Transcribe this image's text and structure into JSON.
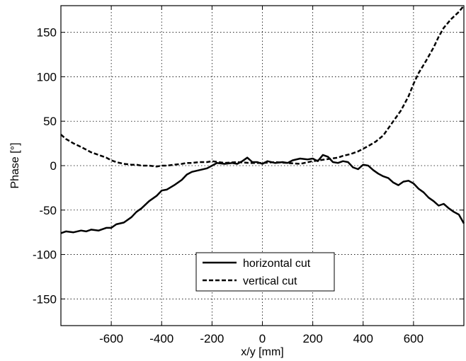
{
  "chart_data": {
    "type": "line",
    "title": "",
    "xlabel": "x/y [mm]",
    "ylabel": "Phase [°]",
    "xlim": [
      -800,
      800
    ],
    "ylim": [
      -180,
      180
    ],
    "x_ticks": [
      -600,
      -400,
      -200,
      0,
      200,
      400,
      600
    ],
    "y_ticks": [
      -150,
      -100,
      -50,
      0,
      50,
      100,
      150
    ],
    "grid": true,
    "legend_position": "lower-center",
    "series": [
      {
        "name": "horizontal cut",
        "style": "solid",
        "color": "#000000",
        "x": [
          -800,
          -780,
          -750,
          -720,
          -700,
          -680,
          -650,
          -620,
          -600,
          -580,
          -550,
          -520,
          -500,
          -480,
          -450,
          -420,
          -400,
          -380,
          -350,
          -320,
          -300,
          -280,
          -250,
          -220,
          -200,
          -180,
          -150,
          -120,
          -100,
          -80,
          -60,
          -40,
          -20,
          0,
          20,
          50,
          80,
          100,
          120,
          150,
          180,
          200,
          220,
          240,
          260,
          280,
          300,
          320,
          340,
          360,
          380,
          400,
          420,
          440,
          460,
          480,
          500,
          520,
          540,
          560,
          580,
          600,
          620,
          640,
          660,
          680,
          700,
          720,
          740,
          760,
          780,
          800
        ],
        "y": [
          -76,
          -74,
          -75,
          -73,
          -74,
          -72,
          -73,
          -70,
          -70,
          -66,
          -64,
          -58,
          -52,
          -48,
          -40,
          -34,
          -28,
          -27,
          -22,
          -16,
          -10,
          -7,
          -5,
          -3,
          0,
          3,
          2,
          3,
          2,
          5,
          9,
          4,
          4,
          2,
          5,
          3,
          4,
          3,
          6,
          8,
          7,
          8,
          5,
          12,
          10,
          4,
          3,
          5,
          4,
          -2,
          -4,
          1,
          0,
          -5,
          -9,
          -12,
          -14,
          -19,
          -22,
          -18,
          -17,
          -20,
          -26,
          -30,
          -36,
          -40,
          -45,
          -43,
          -48,
          -52,
          -55,
          -65
        ]
      },
      {
        "name": "vertical cut",
        "style": "dashed",
        "color": "#000000",
        "x": [
          -800,
          -780,
          -750,
          -720,
          -700,
          -680,
          -650,
          -620,
          -600,
          -580,
          -550,
          -520,
          -500,
          -480,
          -450,
          -420,
          -400,
          -380,
          -350,
          -320,
          -300,
          -280,
          -250,
          -220,
          -200,
          -150,
          -100,
          -50,
          0,
          50,
          100,
          150,
          200,
          250,
          300,
          320,
          350,
          380,
          400,
          420,
          450,
          480,
          500,
          520,
          550,
          580,
          600,
          620,
          650,
          680,
          700,
          720,
          750,
          780,
          800
        ],
        "y": [
          35,
          30,
          25,
          21,
          18,
          15,
          12,
          9,
          6,
          4,
          2,
          1,
          1,
          0,
          0,
          -1,
          0,
          0,
          1,
          2,
          3,
          3,
          4,
          4,
          5,
          3,
          4,
          3,
          3,
          4,
          3,
          2,
          5,
          7,
          9,
          11,
          13,
          16,
          19,
          22,
          27,
          34,
          42,
          50,
          62,
          78,
          92,
          104,
          118,
          133,
          145,
          155,
          165,
          173,
          180
        ]
      }
    ]
  }
}
